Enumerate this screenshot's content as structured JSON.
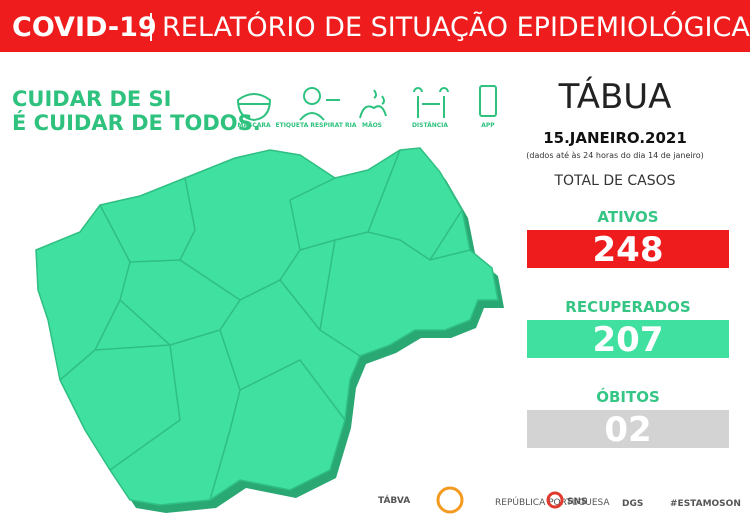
{
  "header": {
    "tag": "COVID-19",
    "title": "RELATÓRIO DE SITUAÇÃO EPIDEMIOLÓGICA"
  },
  "slogan": [
    "CUIDAR DE SI",
    "É CUIDAR DE TODOS."
  ],
  "icons": [
    "MÁSCARA",
    "ETIQUETA RESPIRAT RIA",
    "MÃOS",
    "DISTÂNCIA",
    "APP"
  ],
  "municipality": "TÁBUA",
  "date": "15.JANEIRO.2021",
  "note": "(dados até às 24 horas do dia 14 de janeiro)",
  "total_label": "TOTAL DE CASOS",
  "stats": [
    {
      "label": "ATIVOS",
      "value": 248
    },
    {
      "label": "RECUPERADOS",
      "value": 207
    },
    {
      "label": "ÓBITOS",
      "value": "02"
    }
  ],
  "footer": [
    "TÁBVA",
    "REPÚBLICA PORTUGUESA",
    "SNS",
    "DGS",
    "#ESTAMOSON"
  ]
}
